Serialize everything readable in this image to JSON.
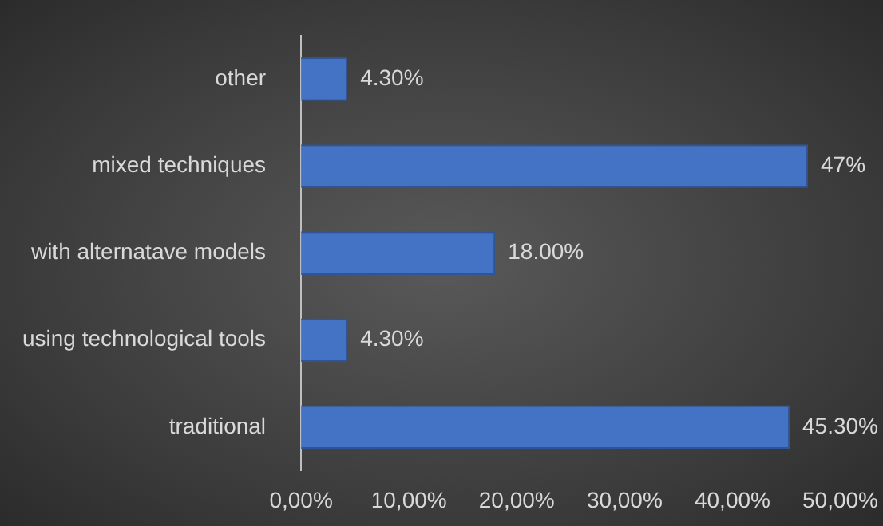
{
  "chart_data": {
    "type": "bar",
    "orientation": "horizontal",
    "categories": [
      "other",
      "mixed techniques",
      "with alternatave models",
      "using technological tools",
      "traditional"
    ],
    "values": [
      4.3,
      47,
      18,
      4.3,
      45.3
    ],
    "value_labels": [
      "4.30%",
      "47%",
      "18.00%",
      "4.30%",
      "45.30%"
    ],
    "color": "#4472c4",
    "xlim": [
      0,
      50
    ],
    "xticks": [
      {
        "value": 0,
        "label": "0,00%"
      },
      {
        "value": 10,
        "label": "10,00%"
      },
      {
        "value": 20,
        "label": "20,00%"
      },
      {
        "value": 30,
        "label": "30,00%"
      },
      {
        "value": 40,
        "label": "40,00%"
      },
      {
        "value": 50,
        "label": "50,00%"
      }
    ],
    "grid": false,
    "legend": false
  }
}
